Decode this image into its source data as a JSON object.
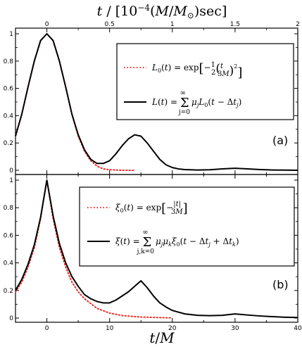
{
  "chart_data": [
    {
      "type": "line",
      "panel_label": "(a)",
      "top_axis_label": "t / [10^{-4}(M/M_⊙)sec]",
      "top_axis_ticks": [
        "0",
        "0.5",
        "1",
        "1.5",
        "2"
      ],
      "xlim": [
        -5,
        40
      ],
      "ylim": [
        0,
        1
      ],
      "y_ticks": [
        "0",
        "0.2",
        "0.4",
        "0.6",
        "0.8",
        "1"
      ],
      "legend_placement": "top-right",
      "series": [
        {
          "name": "L0(t) = exp[-1/2 (t/3M)^2]",
          "style": "dotted",
          "color": "#e8302a",
          "x": [
            -5,
            -4,
            -3,
            -2,
            -1,
            0,
            1,
            2,
            3,
            4,
            5,
            6,
            7,
            8,
            9,
            10,
            12,
            14
          ],
          "y": [
            0.25,
            0.41,
            0.61,
            0.8,
            0.95,
            1.0,
            0.95,
            0.8,
            0.61,
            0.41,
            0.25,
            0.14,
            0.07,
            0.03,
            0.01,
            0.004,
            0.0,
            0.0
          ]
        },
        {
          "name": "L(t) = Σ_{j=0}^{∞} μ_j L0(t - Δt_j)",
          "style": "solid",
          "color": "#000000",
          "x": [
            -5,
            -4,
            -3,
            -2,
            -1,
            0,
            1,
            2,
            3,
            4,
            5,
            6,
            7,
            8,
            9,
            10,
            11,
            12,
            13,
            14,
            15,
            16,
            17,
            18,
            19,
            20,
            21,
            22,
            24,
            26,
            28,
            30,
            32,
            34,
            36,
            38,
            40
          ],
          "y": [
            0.25,
            0.41,
            0.61,
            0.8,
            0.95,
            1.0,
            0.95,
            0.8,
            0.61,
            0.41,
            0.26,
            0.15,
            0.08,
            0.05,
            0.05,
            0.07,
            0.12,
            0.18,
            0.23,
            0.26,
            0.25,
            0.2,
            0.14,
            0.08,
            0.04,
            0.02,
            0.01,
            0.005,
            0.002,
            0.004,
            0.01,
            0.015,
            0.01,
            0.005,
            0.002,
            0.001,
            0.0
          ]
        }
      ]
    },
    {
      "type": "line",
      "panel_label": "(b)",
      "xlabel": "t/M",
      "x_ticks": [
        "0",
        "10",
        "20",
        "30",
        "40"
      ],
      "xlim": [
        -5,
        40
      ],
      "ylim": [
        0,
        1
      ],
      "y_ticks": [
        "0",
        "0.2",
        "0.4",
        "0.6",
        "0.8",
        "1"
      ],
      "legend_placement": "top-right",
      "series": [
        {
          "name": "ξ0(t) = exp[-|t|/3M]",
          "style": "dotted",
          "color": "#e8302a",
          "x": [
            -5,
            -4,
            -3,
            -2,
            -1,
            0,
            1,
            2,
            3,
            4,
            5,
            6,
            8,
            10,
            12,
            15,
            20
          ],
          "y": [
            0.19,
            0.26,
            0.37,
            0.51,
            0.72,
            1.0,
            0.72,
            0.51,
            0.37,
            0.26,
            0.19,
            0.14,
            0.07,
            0.036,
            0.018,
            0.007,
            0.001
          ]
        },
        {
          "name": "ξ(t) = Σ_{j,k=0}^{∞} μ_j μ_k ξ0(t - Δt_j + Δt_k)",
          "style": "solid",
          "color": "#000000",
          "x": [
            -5,
            -4,
            -3,
            -2,
            -1,
            0,
            1,
            2,
            3,
            4,
            5,
            6,
            7,
            8,
            9,
            10,
            11,
            12,
            13,
            14,
            15,
            16,
            17,
            18,
            19,
            20,
            22,
            24,
            26,
            28,
            30,
            32,
            34,
            36,
            38,
            40
          ],
          "y": [
            0.2,
            0.28,
            0.39,
            0.53,
            0.73,
            1.0,
            0.74,
            0.54,
            0.4,
            0.3,
            0.23,
            0.17,
            0.14,
            0.12,
            0.11,
            0.11,
            0.13,
            0.16,
            0.19,
            0.23,
            0.27,
            0.22,
            0.16,
            0.11,
            0.08,
            0.055,
            0.03,
            0.02,
            0.017,
            0.02,
            0.03,
            0.022,
            0.015,
            0.01,
            0.006,
            0.004
          ]
        }
      ]
    }
  ]
}
